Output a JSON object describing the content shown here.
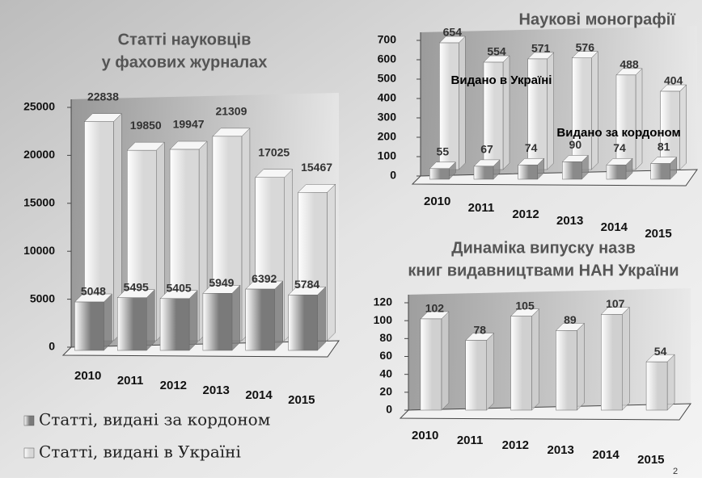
{
  "slide_number": "2",
  "chart_data": [
    {
      "type": "bar3d",
      "title": [
        "Статті науковців",
        "у фахових журналах"
      ],
      "categories": [
        "2010",
        "2011",
        "2012",
        "2013",
        "2014",
        "2015"
      ],
      "series": [
        {
          "name": "Статті, видані за кордоном",
          "color": "#7a7a7a",
          "values": [
            5048,
            5495,
            5405,
            5949,
            6392,
            5784
          ]
        },
        {
          "name": "Статті, видані в Україні",
          "color": "#d8d8d8",
          "values": [
            22838,
            19850,
            19947,
            21309,
            17025,
            15467
          ]
        }
      ],
      "ylim": [
        0,
        25000
      ],
      "yticks": [
        0,
        5000,
        10000,
        15000,
        20000,
        25000
      ],
      "legend": "bottom"
    },
    {
      "type": "bar3d",
      "title": [
        "Наукові монографії"
      ],
      "categories": [
        "2010",
        "2011",
        "2012",
        "2013",
        "2014",
        "2015"
      ],
      "series": [
        {
          "name": "Видано в Україні",
          "color": "#d8d8d8",
          "values": [
            654,
            554,
            571,
            576,
            488,
            404
          ]
        },
        {
          "name": "Видано за кордоном",
          "color": "#8a8a8a",
          "values": [
            55,
            67,
            74,
            90,
            74,
            81
          ]
        }
      ],
      "ylim": [
        0,
        700
      ],
      "yticks": [
        0,
        100,
        200,
        300,
        400,
        500,
        600,
        700
      ],
      "legend": "inline"
    },
    {
      "type": "bar3d",
      "title": [
        "Динаміка випуску назв",
        "книг видавництвами НАН України"
      ],
      "categories": [
        "2010",
        "2011",
        "2012",
        "2013",
        "2014",
        "2015"
      ],
      "values": [
        102,
        78,
        105,
        89,
        107,
        54
      ],
      "color": "#d0d0d0",
      "ylim": [
        0,
        120
      ],
      "yticks": [
        0,
        20,
        40,
        60,
        80,
        100,
        120
      ]
    }
  ]
}
